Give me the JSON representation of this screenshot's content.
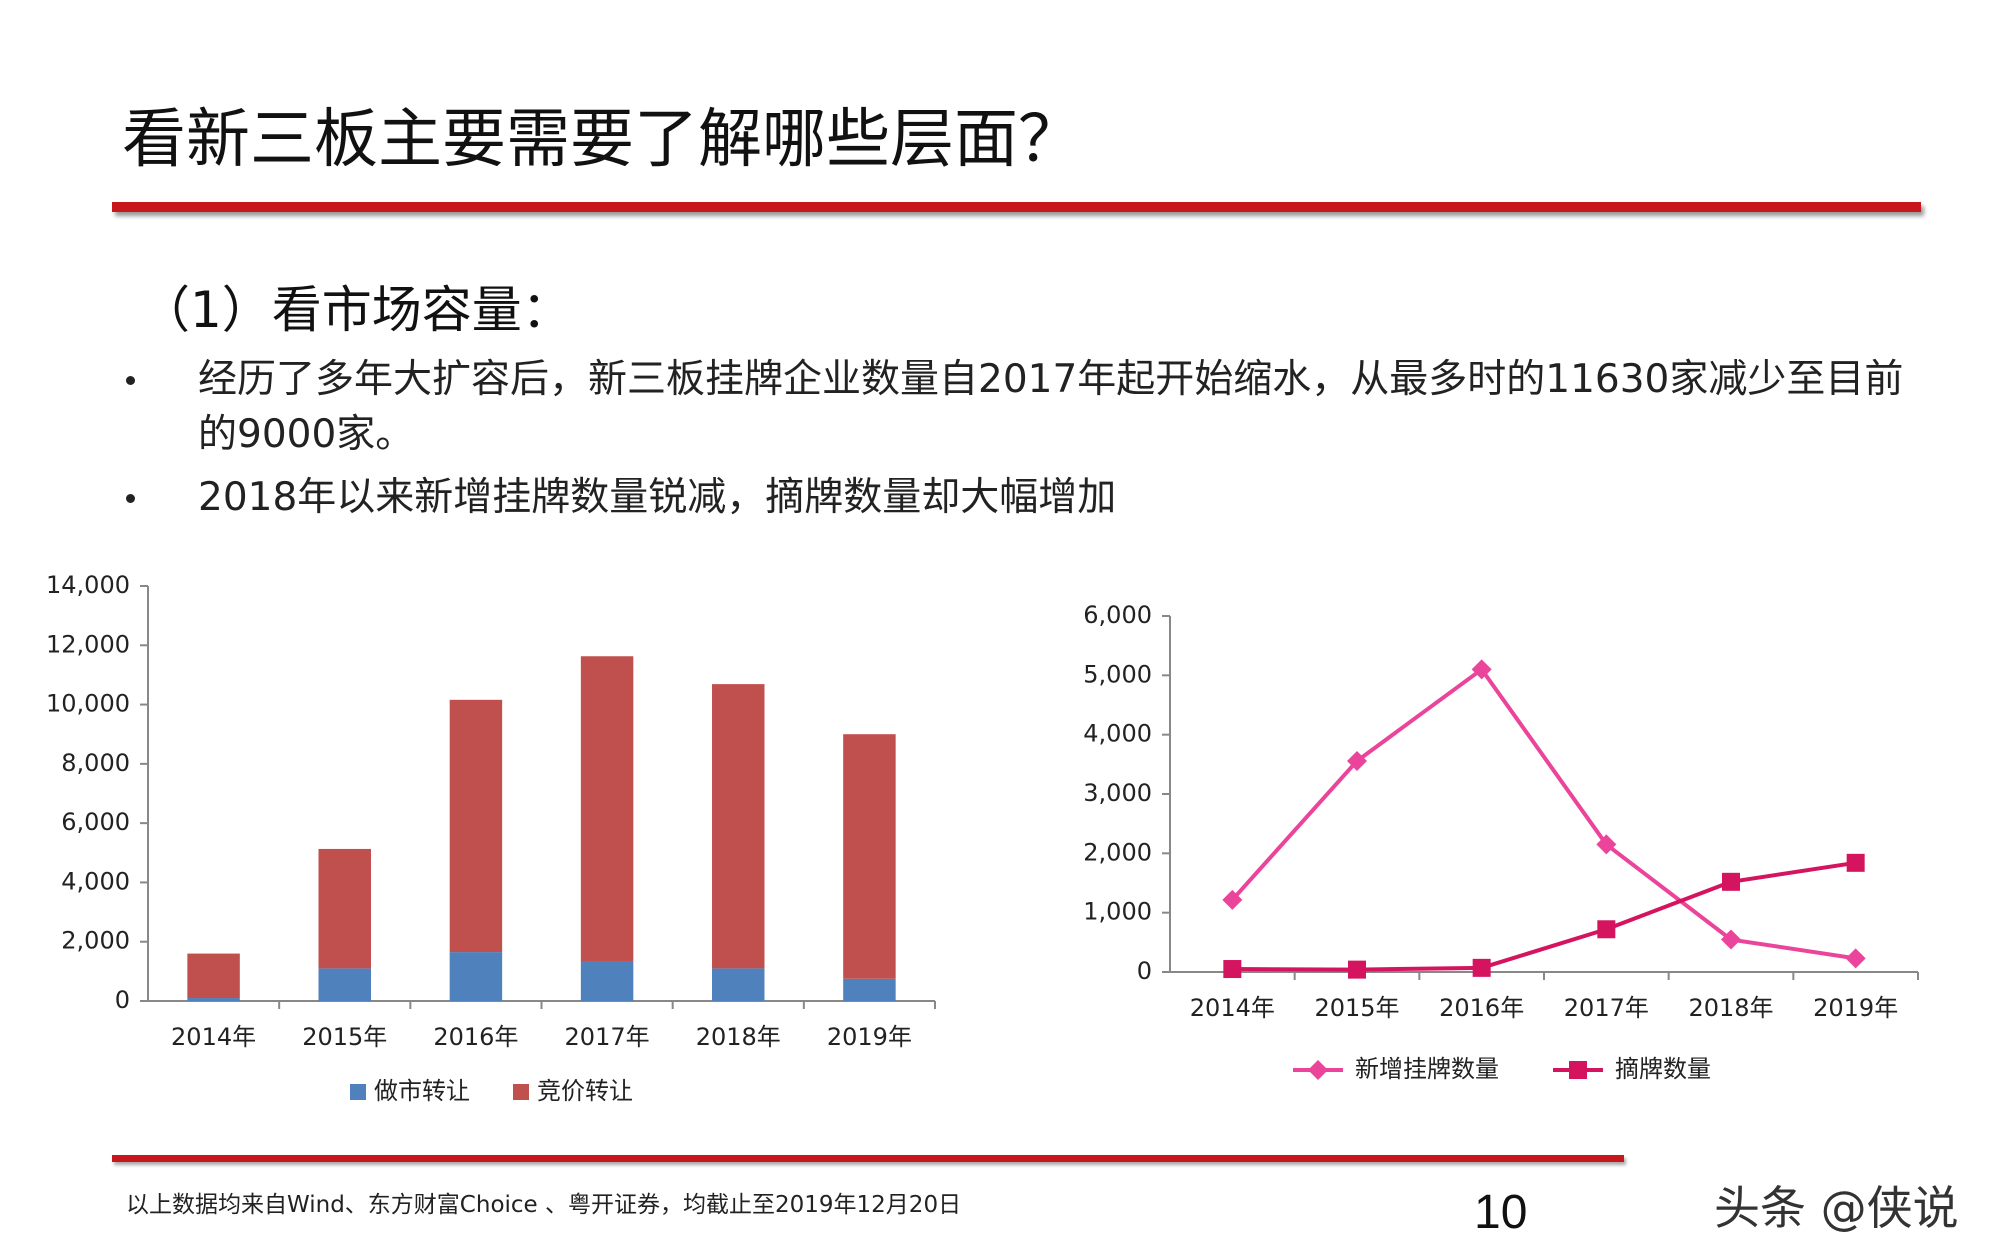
{
  "slide": {
    "title": "看新三板主要需要了解哪些层面？",
    "section": "（1）看市场容量：",
    "bullets": [
      "经历了多年大扩容后，新三板挂牌企业数量自2017年起开始缩水，从最多时的11630家减少至目前的9000家。",
      "2018年以来新增挂牌数量锐减，摘牌数量却大幅增加"
    ],
    "footnote": "以上数据均来自Wind、东方财富Choice 、粤开证券，均截止至2019年12月20日",
    "page_number": "10",
    "watermark": "头条 @侠说"
  },
  "chart_data": [
    {
      "type": "stacked_bar",
      "categories": [
        "2014年",
        "2015年",
        "2016年",
        "2017年",
        "2018年",
        "2019年"
      ],
      "series": [
        {
          "name": "做市转让",
          "color": "#4f81bd",
          "values": [
            100,
            1100,
            1650,
            1350,
            1100,
            750
          ]
        },
        {
          "name": "竞价转让",
          "color": "#c0504d",
          "values": [
            1500,
            4030,
            8510,
            10280,
            9590,
            8250
          ]
        }
      ],
      "ylim": [
        0,
        14000
      ],
      "yticks": [
        0,
        {
          "value": 2000,
          "label": "2,000"
        },
        {
          "value": 4000,
          "label": "4,000"
        },
        {
          "value": 6000,
          "label": "6,000"
        },
        {
          "value": 8000,
          "label": "8,000"
        },
        {
          "value": 10000,
          "label": "10,000"
        },
        {
          "value": 12000,
          "label": "12,000"
        },
        {
          "value": 14000,
          "label": "14,000"
        }
      ],
      "legend": "bottom"
    },
    {
      "type": "line",
      "categories": [
        "2014年",
        "2015年",
        "2016年",
        "2017年",
        "2018年",
        "2019年"
      ],
      "series": [
        {
          "name": "新增挂牌数量",
          "color": "#ea449b",
          "marker": "diamond",
          "values": [
            1216,
            3557,
            5100,
            2150,
            547,
            230
          ]
        },
        {
          "name": "摘牌数量",
          "color": "#d4145f",
          "marker": "square",
          "values": [
            50,
            40,
            70,
            720,
            1520,
            1840
          ]
        }
      ],
      "ylim": [
        0,
        6000
      ],
      "yticks": [
        0,
        {
          "value": 1000,
          "label": "1,000"
        },
        {
          "value": 2000,
          "label": "2,000"
        },
        {
          "value": 3000,
          "label": "3,000"
        },
        {
          "value": 4000,
          "label": "4,000"
        },
        {
          "value": 5000,
          "label": "5,000"
        },
        {
          "value": 6000,
          "label": "6,000"
        }
      ],
      "legend": "bottom"
    }
  ]
}
